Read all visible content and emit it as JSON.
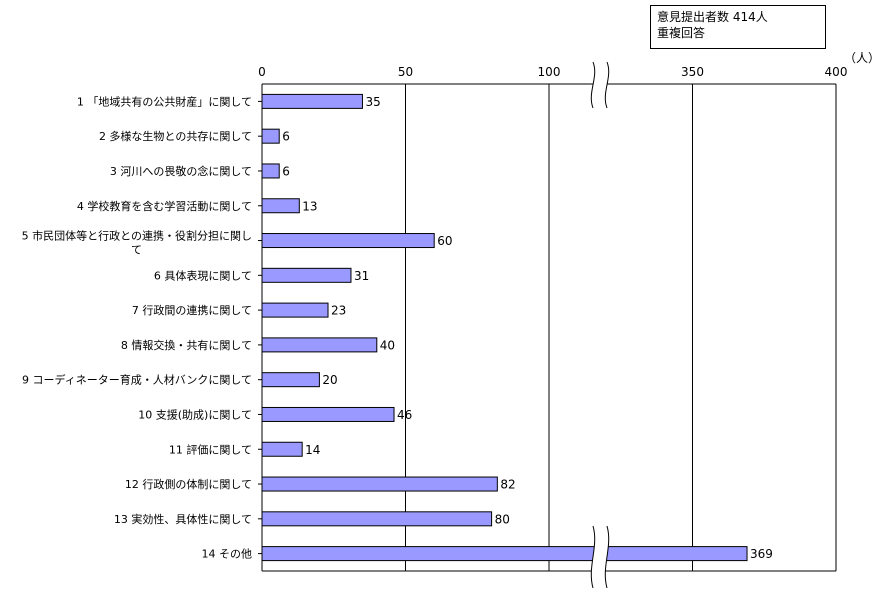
{
  "info": {
    "respondents": "意見提出者数  414人",
    "note": "重複回答"
  },
  "chart_data": {
    "type": "bar",
    "orientation": "horizontal",
    "unit": "（人）",
    "axis_break": [
      100,
      350
    ],
    "xlim": [
      0,
      400
    ],
    "ticks": [
      "0",
      "50",
      "100",
      "350",
      "400"
    ],
    "tick_values": [
      0,
      50,
      100,
      350,
      400
    ],
    "categories": [
      [
        "1 「地域共有の公共財産」に関して"
      ],
      [
        "2  多様な生物との共存に関して"
      ],
      [
        "3  河川への畏敬の念に関して"
      ],
      [
        "4  学校教育を含む学習活動に関して"
      ],
      [
        "5  市民団体等と行政との連携・役割分担に関し",
        "て"
      ],
      [
        "6  具体表現に関して"
      ],
      [
        "7  行政間の連携に関して"
      ],
      [
        "8  情報交換・共有に関して"
      ],
      [
        "9  コーディネーター育成・人材バンクに関して"
      ],
      [
        "10  支援(助成)に関して"
      ],
      [
        "11  評価に関して"
      ],
      [
        "12  行政側の体制に関して"
      ],
      [
        "13  実効性、具体性に関して"
      ],
      [
        "14  その他"
      ]
    ],
    "values": [
      35,
      6,
      6,
      13,
      60,
      31,
      23,
      40,
      20,
      46,
      14,
      82,
      80,
      369
    ],
    "grid": true,
    "bar_color": "#9999FF"
  }
}
